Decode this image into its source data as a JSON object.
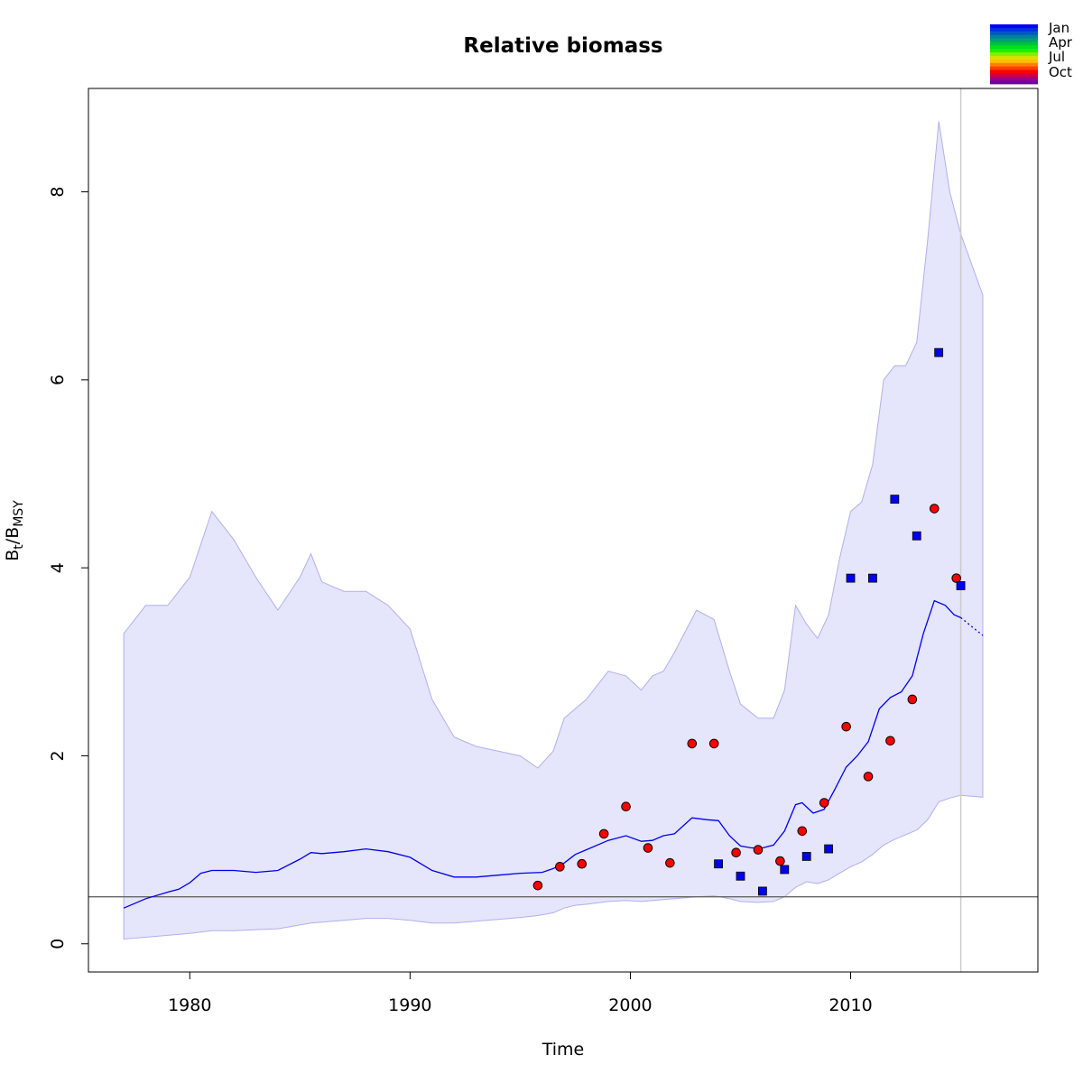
{
  "chart_data": {
    "type": "line",
    "title": "Relative biomass",
    "xlabel": "Time",
    "ylabel": {
      "base": "B",
      "sub1": "t",
      "sep": "/B",
      "sub2": "MSY"
    },
    "xlim": [
      1975.4,
      2018.5
    ],
    "ylim": [
      -0.3,
      9.1
    ],
    "x_ticks": [
      1980,
      1990,
      2000,
      2010
    ],
    "y_ticks": [
      0,
      2,
      4,
      6,
      8
    ],
    "grid": false,
    "reference_line_y": 0.5,
    "reference_line_color": "#666666",
    "vertical_marker_x": 2015.0,
    "vertical_marker_color": "#cccccc",
    "band_fill": "#e5e5fb",
    "band_stroke": "#b0b0ee",
    "line_color": "#0000ee",
    "band": {
      "x": [
        1977.0,
        1978.0,
        1979.0,
        1980.0,
        1981.0,
        1982.0,
        1983.0,
        1984.0,
        1985.0,
        1985.5,
        1986.0,
        1987.0,
        1988.0,
        1989.0,
        1990.0,
        1991.0,
        1992.0,
        1993.0,
        1994.0,
        1995.0,
        1995.8,
        1996.5,
        1997.0,
        1997.5,
        1998.0,
        1999.0,
        1999.8,
        2000.5,
        2001.0,
        2001.5,
        2002.0,
        2003.0,
        2003.8,
        2004.5,
        2005.0,
        2005.8,
        2006.5,
        2007.0,
        2007.5,
        2008.0,
        2008.5,
        2009.0,
        2009.5,
        2010.0,
        2010.5,
        2011.0,
        2011.5,
        2012.0,
        2012.5,
        2013.0,
        2013.5,
        2014.0,
        2014.5,
        2015.0,
        2016.0
      ],
      "upper": [
        3.3,
        3.6,
        3.6,
        3.9,
        4.6,
        4.3,
        3.9,
        3.55,
        3.9,
        4.15,
        3.85,
        3.75,
        3.75,
        3.6,
        3.35,
        2.6,
        2.2,
        2.1,
        2.05,
        2.0,
        1.87,
        2.05,
        2.4,
        2.5,
        2.6,
        2.9,
        2.85,
        2.7,
        2.85,
        2.9,
        3.1,
        3.55,
        3.45,
        2.9,
        2.55,
        2.4,
        2.4,
        2.7,
        3.6,
        3.4,
        3.25,
        3.5,
        4.1,
        4.6,
        4.7,
        5.1,
        6.0,
        6.15,
        6.15,
        6.4,
        7.5,
        8.75,
        8.0,
        7.55,
        6.9
      ],
      "lower": [
        0.05,
        0.07,
        0.09,
        0.11,
        0.14,
        0.14,
        0.15,
        0.16,
        0.2,
        0.22,
        0.23,
        0.25,
        0.27,
        0.27,
        0.25,
        0.22,
        0.22,
        0.24,
        0.26,
        0.28,
        0.3,
        0.33,
        0.38,
        0.41,
        0.42,
        0.45,
        0.46,
        0.45,
        0.46,
        0.47,
        0.48,
        0.5,
        0.51,
        0.48,
        0.45,
        0.44,
        0.45,
        0.5,
        0.6,
        0.66,
        0.64,
        0.68,
        0.75,
        0.82,
        0.87,
        0.95,
        1.05,
        1.11,
        1.16,
        1.21,
        1.32,
        1.51,
        1.55,
        1.58,
        1.56
      ]
    },
    "series": [
      {
        "x": [
          1977.0,
          1978.0,
          1979.0,
          1979.5,
          1980.0,
          1980.5,
          1981.0,
          1982.0,
          1983.0,
          1984.0,
          1985.0,
          1985.5,
          1986.0,
          1987.0,
          1988.0,
          1989.0,
          1990.0,
          1991.0,
          1992.0,
          1993.0,
          1994.0,
          1995.0,
          1996.0,
          1996.5,
          1997.0,
          1997.5,
          1998.0,
          1999.0,
          1999.8,
          2000.5,
          2001.0,
          2001.5,
          2002.0,
          2002.8,
          2003.5,
          2004.0,
          2004.5,
          2005.0,
          2005.5,
          2006.0,
          2006.5,
          2007.0,
          2007.5,
          2007.8,
          2008.3,
          2008.8,
          2009.3,
          2009.8,
          2010.3,
          2010.8,
          2011.3,
          2011.8,
          2012.3,
          2012.8,
          2013.3,
          2013.8,
          2014.3,
          2014.7,
          2015.0
        ],
        "values": [
          0.38,
          0.48,
          0.55,
          0.58,
          0.65,
          0.75,
          0.78,
          0.78,
          0.76,
          0.78,
          0.9,
          0.97,
          0.96,
          0.98,
          1.01,
          0.98,
          0.92,
          0.78,
          0.71,
          0.71,
          0.73,
          0.75,
          0.76,
          0.8,
          0.86,
          0.95,
          1.0,
          1.1,
          1.15,
          1.09,
          1.1,
          1.15,
          1.17,
          1.34,
          1.32,
          1.31,
          1.15,
          1.04,
          1.02,
          1.02,
          1.05,
          1.2,
          1.48,
          1.5,
          1.39,
          1.43,
          1.65,
          1.88,
          2.0,
          2.15,
          2.5,
          2.62,
          2.68,
          2.85,
          3.3,
          3.65,
          3.6,
          3.5,
          3.47
        ]
      },
      {
        "x": [
          2015.0,
          2016.0
        ],
        "values": [
          3.47,
          3.28
        ],
        "dotted": true
      }
    ],
    "observations": [
      {
        "marker": "circle",
        "color": "#ff0000",
        "points": [
          [
            1995.8,
            0.62
          ],
          [
            1996.8,
            0.82
          ],
          [
            1997.8,
            0.85
          ],
          [
            1998.8,
            1.17
          ],
          [
            1999.8,
            1.46
          ],
          [
            2000.8,
            1.02
          ],
          [
            2001.8,
            0.86
          ],
          [
            2002.8,
            2.13
          ],
          [
            2003.8,
            2.13
          ],
          [
            2004.8,
            0.97
          ],
          [
            2005.8,
            1.0
          ],
          [
            2006.8,
            0.88
          ],
          [
            2007.8,
            1.2
          ],
          [
            2008.8,
            1.5
          ],
          [
            2009.8,
            2.31
          ],
          [
            2010.8,
            1.78
          ],
          [
            2011.8,
            2.16
          ],
          [
            2012.8,
            2.6
          ],
          [
            2013.8,
            4.63
          ],
          [
            2014.8,
            3.89
          ]
        ]
      },
      {
        "marker": "square",
        "color": "#0000ee",
        "points": [
          [
            2004.0,
            0.85
          ],
          [
            2005.0,
            0.72
          ],
          [
            2006.0,
            0.56
          ],
          [
            2007.0,
            0.79
          ],
          [
            2008.0,
            0.93
          ],
          [
            2009.0,
            1.01
          ],
          [
            2010.0,
            3.89
          ],
          [
            2011.0,
            3.89
          ],
          [
            2012.0,
            4.73
          ],
          [
            2013.0,
            4.34
          ],
          [
            2014.0,
            6.29
          ],
          [
            2015.0,
            3.81
          ]
        ]
      }
    ],
    "legend": {
      "position": "top-right",
      "labels": [
        "Jan",
        "Apr",
        "Jul",
        "Oct"
      ],
      "colors": [
        "#0000ff",
        "#0030e0",
        "#0058c0",
        "#007fa0",
        "#00a070",
        "#00c040",
        "#00e020",
        "#20f000",
        "#80f000",
        "#d8e000",
        "#ffc000",
        "#ff8000",
        "#ff4000",
        "#ff0000",
        "#d00040",
        "#a00080",
        "#7000a0"
      ]
    }
  }
}
